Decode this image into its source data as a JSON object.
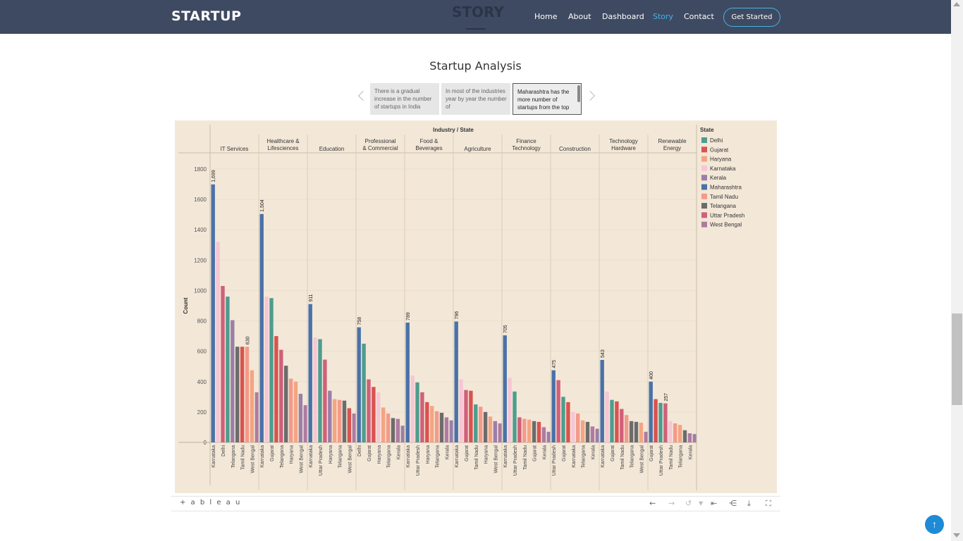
{
  "brand": "STARTUP",
  "hero_ghost": "STORY",
  "nav": {
    "items": [
      "Home",
      "About",
      "Dashboard",
      "Story",
      "Contact"
    ],
    "active": "Story",
    "cta": "Get Started"
  },
  "section_title": "Startup Analysis",
  "story_points": [
    "There is a gradual increase in the number of startups in India",
    "In most of the industries year by year the number of",
    "Maharashtra has the more number of startups from the top"
  ],
  "colors": {
    "navbar": "#3e4a61",
    "accent": "#47b2e4",
    "viz_background": "#f3e8d8",
    "fab": "#1f8bd6"
  },
  "legend": {
    "title": "State",
    "items": [
      {
        "label": "Delhi",
        "color": "#4e9d8e"
      },
      {
        "label": "Gujarat",
        "color": "#d9534f"
      },
      {
        "label": "Haryana",
        "color": "#f4a582"
      },
      {
        "label": "Karnataka",
        "color": "#f7c6d4"
      },
      {
        "label": "Kerala",
        "color": "#9b7fa8"
      },
      {
        "label": "Maharashtra",
        "color": "#4a72a8"
      },
      {
        "label": "Tamil Nadu",
        "color": "#f49a8a"
      },
      {
        "label": "Telangana",
        "color": "#6c6c6c"
      },
      {
        "label": "Uttar Pradesh",
        "color": "#d0607a"
      },
      {
        "label": "West Bengal",
        "color": "#b07aa1"
      }
    ]
  },
  "chart_data": {
    "type": "bar",
    "title": "Industry / State",
    "xlabel": "",
    "ylabel": "Count",
    "ylim": [
      0,
      1800
    ],
    "yticks": [
      0,
      200,
      400,
      600,
      800,
      1000,
      1200,
      1400,
      1600,
      1800
    ],
    "groups": [
      {
        "name": "IT Services",
        "bars": [
          {
            "state": "Maharashtra",
            "value": 1699,
            "label": "1,699"
          },
          {
            "state": "Karnataka",
            "value": 1320
          },
          {
            "state": "Uttar Pradesh",
            "value": 1030
          },
          {
            "state": "Delhi",
            "value": 960
          },
          {
            "state": "Kerala",
            "value": 805
          },
          {
            "state": "Telangana",
            "value": 630
          },
          {
            "state": "Gujarat",
            "value": 630
          },
          {
            "state": "Tamil Nadu",
            "value": 630,
            "label": "630"
          },
          {
            "state": "Haryana",
            "value": 475
          },
          {
            "state": "West Bengal",
            "value": 330
          }
        ]
      },
      {
        "name": "Healthcare & Lifesciences",
        "bars": [
          {
            "state": "Maharashtra",
            "value": 1504,
            "label": "1,504"
          },
          {
            "state": "Karnataka",
            "value": 960
          },
          {
            "state": "Delhi",
            "value": 950
          },
          {
            "state": "Gujarat",
            "value": 700
          },
          {
            "state": "Uttar Pradesh",
            "value": 610
          },
          {
            "state": "Telangana",
            "value": 505
          },
          {
            "state": "Tamil Nadu",
            "value": 420
          },
          {
            "state": "Haryana",
            "value": 400
          },
          {
            "state": "Kerala",
            "value": 320
          },
          {
            "state": "West Bengal",
            "value": 245
          }
        ]
      },
      {
        "name": "Education",
        "bars": [
          {
            "state": "Maharashtra",
            "value": 911,
            "label": "911"
          },
          {
            "state": "Karnataka",
            "value": 690
          },
          {
            "state": "Delhi",
            "value": 680
          },
          {
            "state": "Uttar Pradesh",
            "value": 545
          },
          {
            "state": "Kerala",
            "value": 340
          },
          {
            "state": "Haryana",
            "value": 285
          },
          {
            "state": "Tamil Nadu",
            "value": 280
          },
          {
            "state": "Telangana",
            "value": 275
          },
          {
            "state": "Gujarat",
            "value": 225
          },
          {
            "state": "West Bengal",
            "value": 190
          }
        ]
      },
      {
        "name": "Professional & Commercial",
        "bars": [
          {
            "state": "Maharashtra",
            "value": 758,
            "label": "758"
          },
          {
            "state": "Delhi",
            "value": 650
          },
          {
            "state": "Uttar Pradesh",
            "value": 415
          },
          {
            "state": "Gujarat",
            "value": 365
          },
          {
            "state": "Karnataka",
            "value": 330
          },
          {
            "state": "Haryana",
            "value": 230
          },
          {
            "state": "Tamil Nadu",
            "value": 190
          },
          {
            "state": "Telangana",
            "value": 160
          },
          {
            "state": "West Bengal",
            "value": 155
          },
          {
            "state": "Kerala",
            "value": 110
          }
        ]
      },
      {
        "name": "Food & Beverages",
        "bars": [
          {
            "state": "Maharashtra",
            "value": 789,
            "label": "789"
          },
          {
            "state": "Karnataka",
            "value": 440
          },
          {
            "state": "Delhi",
            "value": 395
          },
          {
            "state": "Uttar Pradesh",
            "value": 330
          },
          {
            "state": "Gujarat",
            "value": 265
          },
          {
            "state": "Haryana",
            "value": 240
          },
          {
            "state": "Tamil Nadu",
            "value": 205
          },
          {
            "state": "Telangana",
            "value": 195
          },
          {
            "state": "West Bengal",
            "value": 165
          },
          {
            "state": "Kerala",
            "value": 145
          }
        ]
      },
      {
        "name": "Agriculture",
        "bars": [
          {
            "state": "Maharashtra",
            "value": 796,
            "label": "796"
          },
          {
            "state": "Karnataka",
            "value": 415
          },
          {
            "state": "Uttar Pradesh",
            "value": 345
          },
          {
            "state": "Gujarat",
            "value": 340
          },
          {
            "state": "Delhi",
            "value": 250
          },
          {
            "state": "Tamil Nadu",
            "value": 235
          },
          {
            "state": "Telangana",
            "value": 200
          },
          {
            "state": "Haryana",
            "value": 170
          },
          {
            "state": "Kerala",
            "value": 140
          },
          {
            "state": "West Bengal",
            "value": 125
          }
        ]
      },
      {
        "name": "Finance Technology",
        "bars": [
          {
            "state": "Maharashtra",
            "value": 705,
            "label": "705"
          },
          {
            "state": "Karnataka",
            "value": 425
          },
          {
            "state": "Delhi",
            "value": 335
          },
          {
            "state": "Uttar Pradesh",
            "value": 165
          },
          {
            "state": "Tamil Nadu",
            "value": 155
          },
          {
            "state": "Haryana",
            "value": 150
          },
          {
            "state": "Telangana",
            "value": 140
          },
          {
            "state": "Gujarat",
            "value": 135
          },
          {
            "state": "West Bengal",
            "value": 100
          },
          {
            "state": "Kerala",
            "value": 70
          }
        ]
      },
      {
        "name": "Construction",
        "bars": [
          {
            "state": "Maharashtra",
            "value": 475,
            "label": "475"
          },
          {
            "state": "Uttar Pradesh",
            "value": 410
          },
          {
            "state": "Delhi",
            "value": 300
          },
          {
            "state": "Gujarat",
            "value": 265
          },
          {
            "state": "Karnataka",
            "value": 200
          },
          {
            "state": "Tamil Nadu",
            "value": 190
          },
          {
            "state": "Haryana",
            "value": 145
          },
          {
            "state": "Telangana",
            "value": 135
          },
          {
            "state": "West Bengal",
            "value": 105
          },
          {
            "state": "Kerala",
            "value": 90
          }
        ]
      },
      {
        "name": "Technology Hardware",
        "bars": [
          {
            "state": "Maharashtra",
            "value": 543,
            "label": "543"
          },
          {
            "state": "Karnataka",
            "value": 335
          },
          {
            "state": "Delhi",
            "value": 280
          },
          {
            "state": "Gujarat",
            "value": 270
          },
          {
            "state": "Uttar Pradesh",
            "value": 220
          },
          {
            "state": "Tamil Nadu",
            "value": 180
          },
          {
            "state": "Telangana",
            "value": 140
          },
          {
            "state": "Telangana",
            "value": 135
          },
          {
            "state": "Haryana",
            "value": 130
          },
          {
            "state": "West Bengal",
            "value": 70
          }
        ]
      },
      {
        "name": "Renewable Energy",
        "bars": [
          {
            "state": "Maharashtra",
            "value": 400,
            "label": "400"
          },
          {
            "state": "Gujarat",
            "value": 285
          },
          {
            "state": "Delhi",
            "value": 260
          },
          {
            "state": "Uttar Pradesh",
            "value": 257,
            "label": "257"
          },
          {
            "state": "Karnataka",
            "value": 140
          },
          {
            "state": "Tamil Nadu",
            "value": 125
          },
          {
            "state": "Haryana",
            "value": 115
          },
          {
            "state": "Telangana",
            "value": 80
          },
          {
            "state": "West Bengal",
            "value": 60
          },
          {
            "state": "Kerala",
            "value": 55
          }
        ]
      }
    ],
    "tick_labels": [
      [
        "Karnataka",
        "Delhi",
        "Telangana",
        "Tamil Nadu",
        "West Bengal"
      ],
      [
        "Karnataka",
        "Gujarat",
        "Telangana",
        "Haryana",
        "West Bengal"
      ],
      [
        "Karnataka",
        "Uttar Pradesh",
        "Haryana",
        "Telangana",
        "West Bengal"
      ],
      [
        "Delhi",
        "Gujarat",
        "Haryana",
        "Telangana",
        "Kerala"
      ],
      [
        "Karnataka",
        "Uttar Pradesh",
        "Haryana",
        "Telangana",
        "Kerala"
      ],
      [
        "Karnataka",
        "Gujarat",
        "Tamil Nadu",
        "Haryana",
        "West Bengal"
      ],
      [
        "Karnataka",
        "Uttar Pradesh",
        "Tamil Nadu",
        "Gujarat",
        "Kerala"
      ],
      [
        "Uttar Pradesh",
        "Gujarat",
        "Karnataka",
        "Telangana",
        "Kerala"
      ],
      [
        "Karnataka",
        "Gujarat",
        "Tamil Nadu",
        "Telangana",
        "West Bengal"
      ],
      [
        "Gujarat",
        "Uttar Pradesh",
        "Tamil Nadu",
        "Telangana",
        "Kerala"
      ]
    ],
    "grid": true,
    "legend_position": "right"
  },
  "tableau_toolbar": {
    "logo": "+ a b l e a u"
  },
  "icons": {
    "fab": "arrow-up-icon"
  }
}
